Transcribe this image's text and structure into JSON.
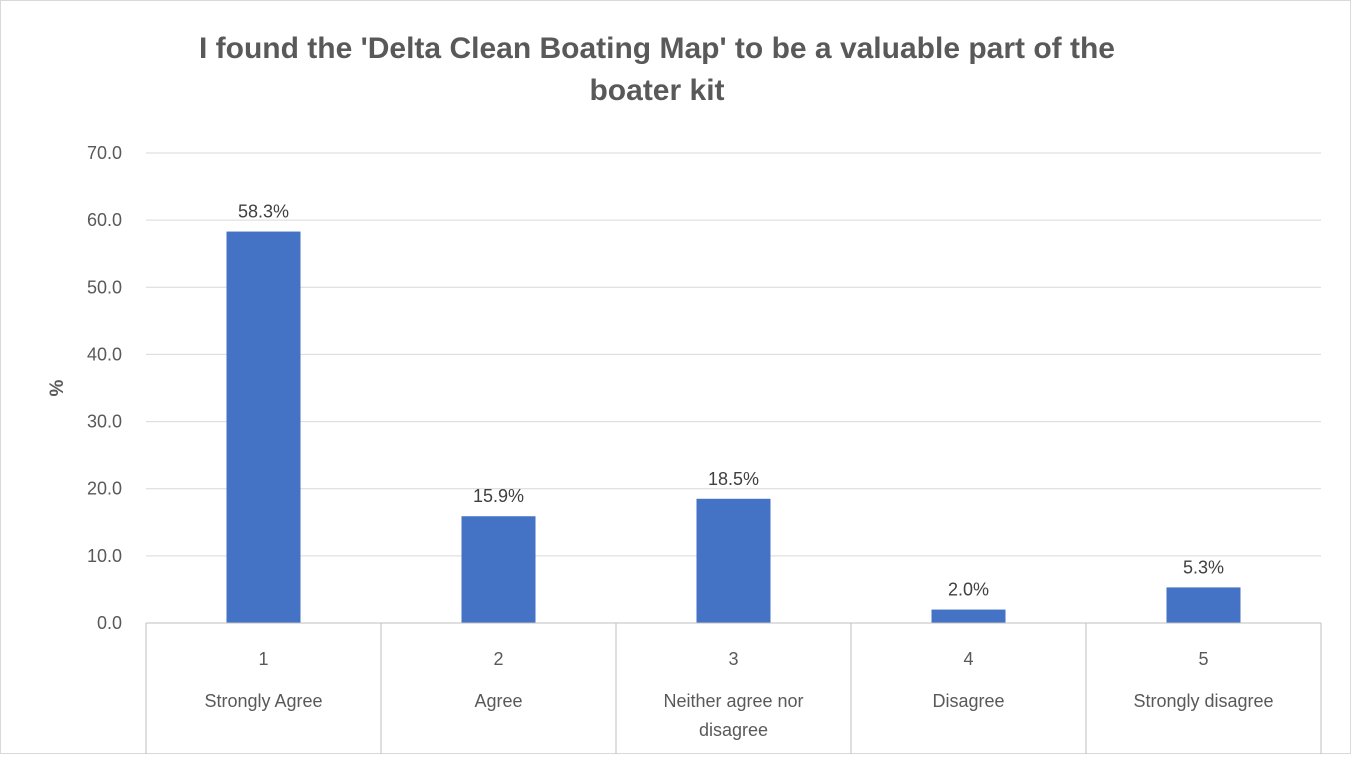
{
  "chart_data": {
    "type": "bar",
    "title_lines": [
      "I found the 'Delta Clean Boating Map' to be a valuable part of the",
      "boater kit"
    ],
    "xlabel": "",
    "ylabel": "%",
    "ylim": [
      0,
      70
    ],
    "yticks": [
      0,
      10,
      20,
      30,
      40,
      50,
      60,
      70
    ],
    "ytick_labels": [
      "0.0",
      "10.0",
      "20.0",
      "30.0",
      "40.0",
      "50.0",
      "60.0",
      "70.0"
    ],
    "grid": true,
    "legend": "none",
    "bar_color": "#4472C4",
    "categories": [
      {
        "code": "1",
        "label_lines": [
          "Strongly Agree"
        ]
      },
      {
        "code": "2",
        "label_lines": [
          "Agree"
        ]
      },
      {
        "code": "3",
        "label_lines": [
          "Neither agree nor",
          "disagree"
        ]
      },
      {
        "code": "4",
        "label_lines": [
          "Disagree"
        ]
      },
      {
        "code": "5",
        "label_lines": [
          "Strongly disagree"
        ]
      }
    ],
    "values": [
      58.3,
      15.9,
      18.5,
      2.0,
      5.3
    ],
    "data_labels": [
      "58.3%",
      "15.9%",
      "18.5%",
      "2.0%",
      "5.3%"
    ]
  }
}
